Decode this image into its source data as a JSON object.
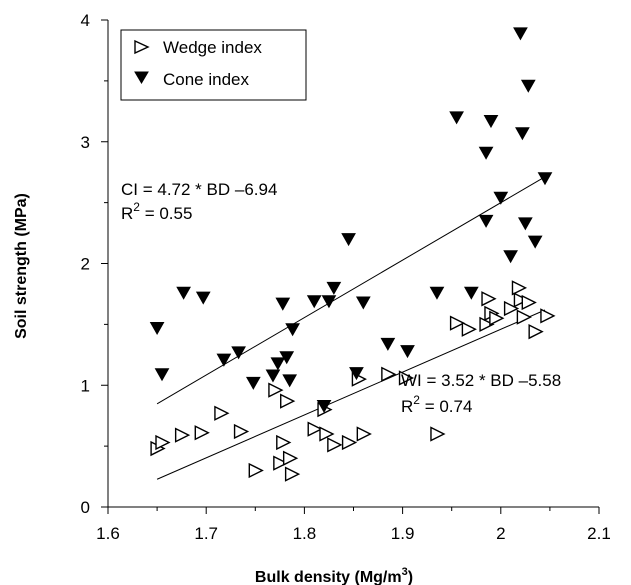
{
  "chart_data": {
    "type": "scatter",
    "xlabel": "Bulk density (Mg/m",
    "xlabel_sup": "3",
    "xlabel_end": ")",
    "ylabel": "Soil strength (MPa)",
    "xlim": [
      1.6,
      2.1
    ],
    "ylim": [
      0,
      4
    ],
    "xticks": [
      1.6,
      1.7,
      1.8,
      1.9,
      2,
      2.1
    ],
    "xtick_labels": [
      "1.6",
      "1.7",
      "1.8",
      "1.9",
      "2",
      "2.1"
    ],
    "yticks": [
      0,
      1,
      2,
      3,
      4
    ],
    "ytick_labels": [
      "0",
      "1",
      "2",
      "3",
      "4"
    ],
    "grid": false,
    "legend_position": "top-left",
    "series": [
      {
        "name": "Wedge index",
        "marker": "open-triangle-right",
        "color": "#000000",
        "points": [
          [
            1.65,
            0.48
          ],
          [
            1.655,
            0.53
          ],
          [
            1.675,
            0.59
          ],
          [
            1.695,
            0.61
          ],
          [
            1.715,
            0.77
          ],
          [
            1.735,
            0.62
          ],
          [
            1.75,
            0.3
          ],
          [
            1.77,
            0.96
          ],
          [
            1.775,
            0.36
          ],
          [
            1.778,
            0.53
          ],
          [
            1.782,
            0.87
          ],
          [
            1.785,
            0.4
          ],
          [
            1.787,
            0.27
          ],
          [
            1.81,
            0.64
          ],
          [
            1.82,
            0.8
          ],
          [
            1.822,
            0.6
          ],
          [
            1.83,
            0.51
          ],
          [
            1.845,
            0.53
          ],
          [
            1.855,
            1.05
          ],
          [
            1.86,
            0.6
          ],
          [
            1.885,
            1.09
          ],
          [
            1.903,
            1.06
          ],
          [
            1.935,
            0.6
          ],
          [
            1.955,
            1.51
          ],
          [
            1.967,
            1.46
          ],
          [
            1.985,
            1.5
          ],
          [
            1.987,
            1.71
          ],
          [
            1.99,
            1.59
          ],
          [
            1.995,
            1.55
          ],
          [
            2.01,
            1.63
          ],
          [
            2.018,
            1.8
          ],
          [
            2.02,
            1.7
          ],
          [
            2.023,
            1.56
          ],
          [
            2.028,
            1.68
          ],
          [
            2.035,
            1.44
          ],
          [
            2.047,
            1.57
          ]
        ]
      },
      {
        "name": "Cone index",
        "marker": "filled-triangle-down",
        "color": "#000000",
        "points": [
          [
            1.65,
            1.47
          ],
          [
            1.655,
            1.09
          ],
          [
            1.677,
            1.76
          ],
          [
            1.697,
            1.72
          ],
          [
            1.718,
            1.21
          ],
          [
            1.733,
            1.27
          ],
          [
            1.748,
            1.02
          ],
          [
            1.768,
            1.08
          ],
          [
            1.773,
            1.18
          ],
          [
            1.778,
            1.67
          ],
          [
            1.782,
            1.23
          ],
          [
            1.785,
            1.04
          ],
          [
            1.788,
            1.46
          ],
          [
            1.81,
            1.69
          ],
          [
            1.82,
            0.83
          ],
          [
            1.825,
            1.69
          ],
          [
            1.83,
            1.8
          ],
          [
            1.845,
            2.2
          ],
          [
            1.853,
            1.1
          ],
          [
            1.86,
            1.68
          ],
          [
            1.885,
            1.34
          ],
          [
            1.905,
            1.28
          ],
          [
            1.935,
            1.76
          ],
          [
            1.955,
            3.2
          ],
          [
            1.97,
            1.76
          ],
          [
            1.985,
            2.91
          ],
          [
            1.985,
            2.35
          ],
          [
            1.99,
            3.17
          ],
          [
            2.0,
            2.54
          ],
          [
            2.01,
            2.06
          ],
          [
            2.02,
            3.89
          ],
          [
            2.022,
            3.07
          ],
          [
            2.025,
            2.33
          ],
          [
            2.028,
            3.46
          ],
          [
            2.035,
            2.18
          ],
          [
            2.045,
            2.7
          ]
        ]
      }
    ],
    "regression_lines": [
      {
        "name": "cone-fit",
        "x": [
          1.65,
          2.045
        ],
        "y": [
          0.848,
          2.712
        ]
      },
      {
        "name": "wedge-fit",
        "x": [
          1.65,
          2.045
        ],
        "y": [
          0.228,
          1.618
        ]
      }
    ],
    "annotations": [
      {
        "name": "ci-equation",
        "text": "CI = 4.72 * BD  –6.94"
      },
      {
        "name": "ci-r2",
        "prefix": "R",
        "sup": "2",
        "suffix": " = 0.55"
      },
      {
        "name": "wi-equation",
        "text": "WI = 3.52 * BD  –5.58"
      },
      {
        "name": "wi-r2",
        "prefix": "R",
        "sup": "2",
        "suffix": " = 0.74"
      }
    ]
  }
}
